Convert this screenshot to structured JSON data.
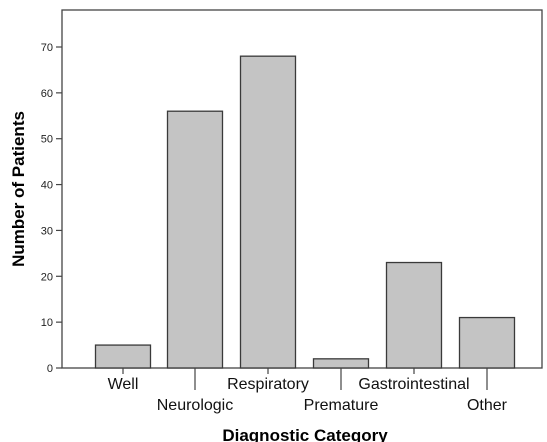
{
  "chart_data": {
    "type": "bar",
    "categories": [
      "Well",
      "Neurologic",
      "Respiratory",
      "Premature",
      "Gastrointestinal",
      "Other"
    ],
    "values": [
      5,
      56,
      68,
      2,
      23,
      11
    ],
    "xlabel": "Diagnostic Category",
    "ylabel": "Number of Patients",
    "ylim": [
      0,
      80
    ],
    "yticks": [
      0,
      10,
      20,
      30,
      40,
      50,
      60,
      70
    ],
    "ytick_labels": [
      "0",
      "10",
      "20",
      "30",
      "40",
      "50",
      "60",
      "70"
    ],
    "grid": false,
    "legend": "none",
    "bar_color": "#c4c4c4",
    "edge_color": "#3a3a3a"
  }
}
